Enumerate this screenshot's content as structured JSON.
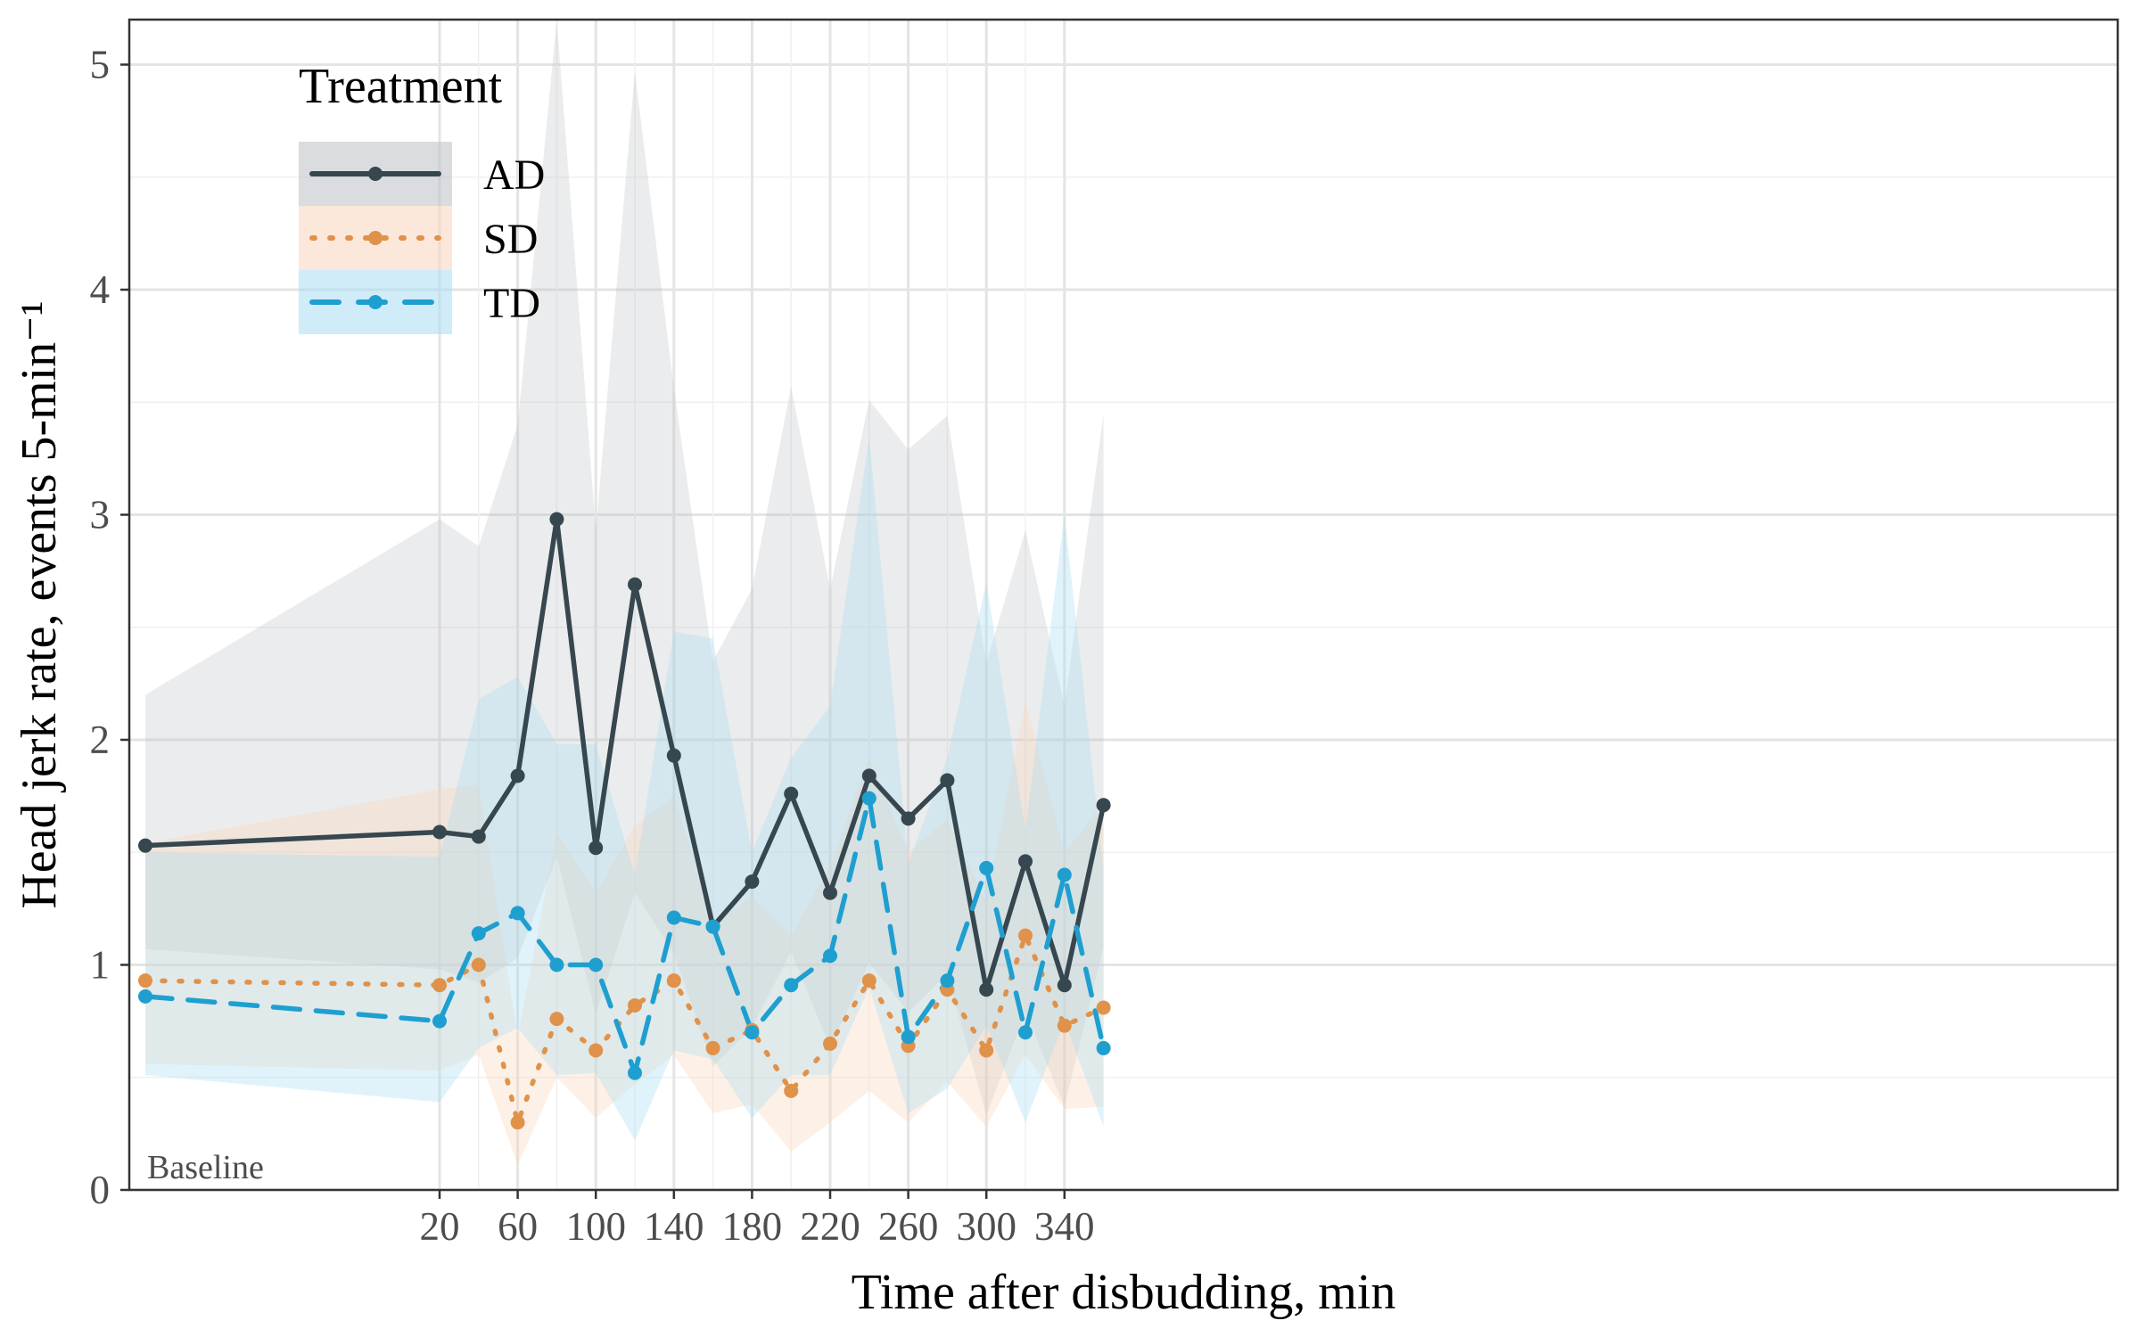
{
  "chart_data": {
    "type": "line",
    "xlabel": "Time after disbudding, min",
    "ylabel": "Head jerk rate, events 5-min⁻¹",
    "xlim": [
      -5,
      365
    ],
    "ylim": [
      0,
      5.2
    ],
    "x_ticks": [
      20,
      60,
      100,
      140,
      180,
      220,
      260,
      300,
      340
    ],
    "x_tick_labels": [
      "20",
      "60",
      "100",
      "140",
      "180",
      "220",
      "260",
      "300",
      "340"
    ],
    "y_ticks": [
      0,
      1,
      2,
      3,
      4,
      5
    ],
    "y_tick_labels": [
      "0",
      "1",
      "2",
      "3",
      "4",
      "5"
    ],
    "grid": true,
    "legend": {
      "title": "Treatment",
      "position": "top-left",
      "entries": [
        "AD",
        "SD",
        "TD"
      ]
    },
    "annotation": "Baseline",
    "x": [
      -40,
      20,
      40,
      60,
      80,
      100,
      120,
      140,
      160,
      180,
      200,
      220,
      240,
      260,
      280,
      300,
      320,
      340,
      360
    ],
    "series": [
      {
        "name": "AD",
        "color": "#37474f",
        "line_style": "solid",
        "values": [
          1.53,
          1.59,
          1.57,
          1.84,
          2.98,
          1.52,
          2.69,
          1.93,
          1.17,
          1.37,
          1.76,
          1.32,
          1.84,
          1.65,
          1.82,
          0.89,
          1.46,
          0.91,
          1.71
        ],
        "lower": [
          1.07,
          0.98,
          0.92,
          1.03,
          1.48,
          0.78,
          1.32,
          1.05,
          0.55,
          0.72,
          1.06,
          0.63,
          1.01,
          0.79,
          0.96,
          0.33,
          0.79,
          0.37,
          1.08
        ],
        "upper": [
          2.2,
          2.98,
          2.86,
          3.4,
          5.2,
          2.93,
          4.97,
          3.56,
          2.35,
          2.67,
          3.57,
          2.67,
          3.51,
          3.29,
          3.44,
          2.34,
          2.93,
          2.15,
          3.45
        ]
      },
      {
        "name": "SD",
        "color": "#e0924a",
        "line_style": "dotted",
        "values": [
          0.93,
          0.91,
          1.0,
          0.3,
          0.76,
          0.62,
          0.82,
          0.93,
          0.63,
          0.71,
          0.44,
          0.65,
          0.93,
          0.64,
          0.89,
          0.62,
          1.13,
          0.73,
          0.81
        ],
        "lower": [
          0.56,
          0.53,
          0.6,
          0.11,
          0.5,
          0.32,
          0.47,
          0.6,
          0.34,
          0.38,
          0.17,
          0.3,
          0.44,
          0.3,
          0.48,
          0.28,
          0.6,
          0.36,
          0.37
        ],
        "upper": [
          1.54,
          1.78,
          1.8,
          0.68,
          1.59,
          1.32,
          1.62,
          1.75,
          1.2,
          1.3,
          1.13,
          1.44,
          1.92,
          1.5,
          1.65,
          1.28,
          2.17,
          1.5,
          1.72
        ]
      },
      {
        "name": "TD",
        "color": "#1f9fd0",
        "line_style": "dashed",
        "values": [
          0.86,
          0.75,
          1.14,
          1.23,
          1.0,
          1.0,
          0.52,
          1.21,
          1.17,
          0.7,
          0.91,
          1.04,
          1.74,
          0.68,
          0.93,
          1.43,
          0.7,
          1.4,
          0.63
        ],
        "lower": [
          0.51,
          0.39,
          0.63,
          0.72,
          0.51,
          0.52,
          0.22,
          0.62,
          0.58,
          0.32,
          0.51,
          0.51,
          0.9,
          0.34,
          0.45,
          0.73,
          0.3,
          0.75,
          0.28
        ],
        "upper": [
          1.5,
          1.48,
          2.18,
          2.28,
          1.98,
          1.98,
          1.4,
          2.48,
          2.45,
          1.5,
          1.92,
          2.15,
          3.35,
          1.45,
          1.92,
          2.7,
          1.6,
          3.0,
          1.42
        ]
      }
    ]
  }
}
